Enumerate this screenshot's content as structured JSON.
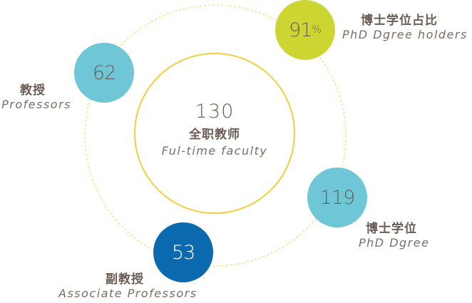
{
  "colors": {
    "dashed_ring": "#f2d45a",
    "center_ring": "#f0cf3c",
    "lime": "#cdd533",
    "teal": "#6ec6d6",
    "blue": "#0a6aad",
    "text": "#6b5d55"
  },
  "center": {
    "value": "130",
    "zh": "全职教师",
    "en": "Ful-time faculty"
  },
  "phd_ratio": {
    "value": "91",
    "unit": "%",
    "zh": "博士学位占比",
    "en": "PhD Dgree holders"
  },
  "professors": {
    "value": "62",
    "zh": "教授",
    "en": "Professors"
  },
  "phd": {
    "value": "119",
    "zh": "博士学位",
    "en": "PhD Dgree"
  },
  "associate": {
    "value": "53",
    "zh": "副教授",
    "en": "Associate Professors"
  }
}
